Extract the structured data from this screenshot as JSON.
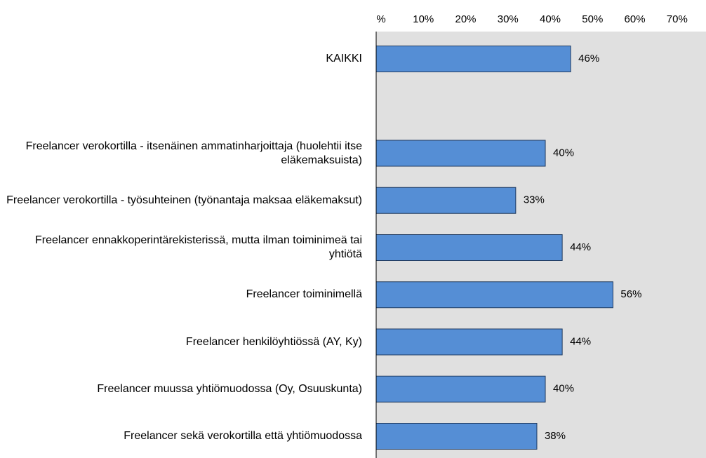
{
  "chart_data": {
    "type": "bar",
    "orientation": "horizontal",
    "categories": [
      "KAIKKI",
      null,
      "Freelancer verokortilla - itsenäinen ammatinharjoittaja (huolehtii itse eläkemaksuista)",
      "Freelancer verokortilla - työsuhteinen (työnantaja maksaa eläkemaksut)",
      "Freelancer ennakkoperintärekisterissä, mutta ilman toiminimeä tai yhtiötä",
      "Freelancer toiminimellä",
      "Freelancer henkilöyhtiössä (AY, Ky)",
      "Freelancer muussa yhtiömuodossa (Oy, Osuuskunta)",
      "Freelancer sekä verokortilla että yhtiömuodossa"
    ],
    "values": [
      46,
      null,
      40,
      33,
      44,
      56,
      44,
      40,
      38
    ],
    "value_labels": [
      "46%",
      null,
      "40%",
      "33%",
      "44%",
      "56%",
      "44%",
      "40%",
      "38%"
    ],
    "color": "#558ed5",
    "xlim": [
      0,
      78
    ],
    "xticks": [
      {
        "value": 0,
        "label": "%"
      },
      {
        "value": 10,
        "label": "10%"
      },
      {
        "value": 20,
        "label": "20%"
      },
      {
        "value": 30,
        "label": "30%"
      },
      {
        "value": 40,
        "label": "40%"
      },
      {
        "value": 50,
        "label": "50%"
      },
      {
        "value": 60,
        "label": "60%"
      },
      {
        "value": 70,
        "label": "70%"
      }
    ],
    "grid": false
  }
}
